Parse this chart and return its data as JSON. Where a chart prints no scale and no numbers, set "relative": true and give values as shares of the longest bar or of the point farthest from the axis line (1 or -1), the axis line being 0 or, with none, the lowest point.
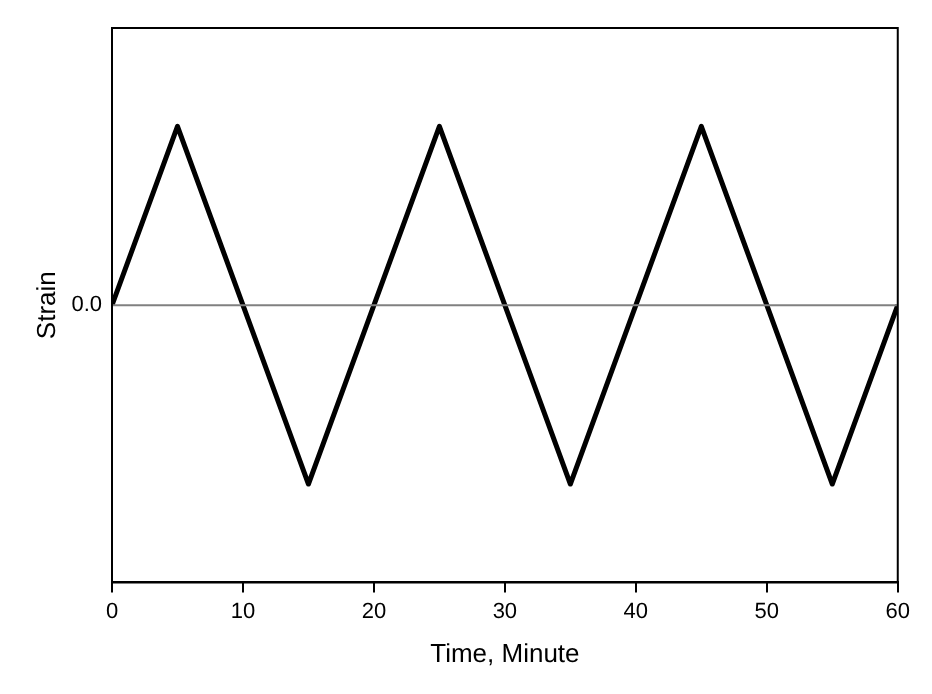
{
  "chart_data": {
    "type": "line",
    "relative": true,
    "xlabel": "Time, Minute",
    "ylabel": "Strain",
    "x": [
      0,
      5,
      15,
      25,
      35,
      45,
      55,
      60
    ],
    "series": [
      {
        "color": "#000000",
        "values": [
          0,
          1,
          -1,
          1,
          -1,
          1,
          -1,
          0
        ]
      }
    ],
    "xlim": [
      0,
      60
    ],
    "xticks": [
      0,
      10,
      20,
      30,
      40,
      50,
      60
    ],
    "ref_lines": [
      {
        "axis": "y",
        "value": 0,
        "label": "0.0",
        "color": "#808080"
      }
    ],
    "grid": false,
    "legend": false,
    "marker": "none",
    "line_style": "solid"
  }
}
